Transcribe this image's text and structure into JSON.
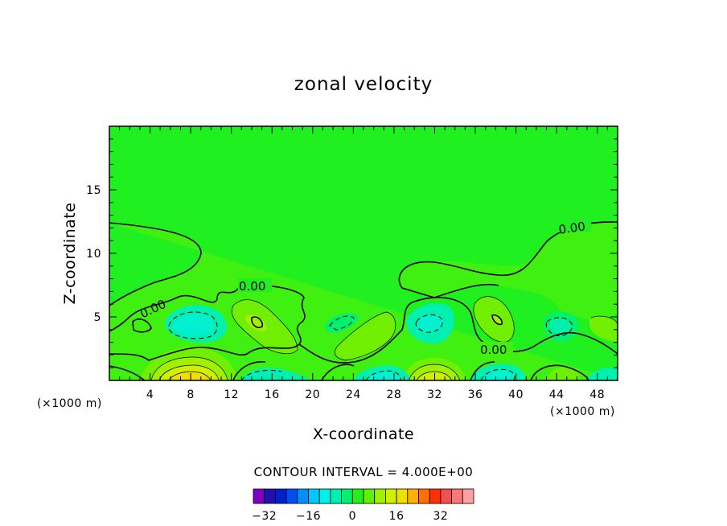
{
  "chart_data": {
    "type": "heatmap",
    "title": "zonal velocity",
    "xlabel": "X-coordinate",
    "ylabel": "Z-coordinate",
    "x_unit": "(×1000 m)",
    "xlim": [
      0,
      50
    ],
    "ylim": [
      0,
      20
    ],
    "x_ticks": [
      4,
      8,
      12,
      16,
      20,
      24,
      28,
      32,
      36,
      40,
      44,
      48
    ],
    "y_ticks": [
      5,
      10,
      15
    ],
    "contour_interval_text": "CONTOUR INTERVAL = 4.000E+00",
    "contour_labels": [
      "0.00",
      "0.00",
      "0.00",
      "0.00"
    ],
    "colorbar": {
      "levels": [
        -36,
        -32,
        -28,
        -24,
        -20,
        -16,
        -12,
        -8,
        -4,
        0,
        4,
        8,
        12,
        16,
        20,
        24,
        28,
        32,
        36,
        40
      ],
      "colors": [
        "#8000c0",
        "#2010b0",
        "#0020d0",
        "#0050f0",
        "#0090ff",
        "#00c8ff",
        "#00f0e8",
        "#00f0b0",
        "#00f070",
        "#20f020",
        "#60f000",
        "#a0f000",
        "#d0f000",
        "#f0e000",
        "#ffb000",
        "#ff7000",
        "#ff3000",
        "#f05050",
        "#f87878",
        "#ffa0a0"
      ],
      "tick_labels": [
        {
          "label": "−32",
          "value": -32
        },
        {
          "label": "−16",
          "value": -16
        },
        {
          "label": "0",
          "value": 0
        },
        {
          "label": "16",
          "value": 16
        },
        {
          "label": "32",
          "value": 32
        }
      ]
    },
    "grid": false,
    "field_description_regions": [
      {
        "x": 8,
        "z": 0.3,
        "value": 14
      },
      {
        "x": 31,
        "z": 0.3,
        "value": 10
      },
      {
        "x": 6,
        "z": 4.5,
        "value": -6
      },
      {
        "x": 14.5,
        "z": 4.6,
        "value": 6
      },
      {
        "x": 26,
        "z": 0.5,
        "value": -6
      },
      {
        "x": 32.5,
        "z": 4.7,
        "value": -6
      },
      {
        "x": 38.5,
        "z": 4.6,
        "value": 6
      },
      {
        "x": 45,
        "z": 3.8,
        "value": -3
      },
      {
        "x": 42,
        "z": 0.6,
        "value": -6
      },
      {
        "x": 49,
        "z": 0.5,
        "value": -5
      },
      {
        "x": 2,
        "z": 10.5,
        "value": 2
      },
      {
        "x": 34,
        "z": 9.5,
        "value": 2
      }
    ]
  }
}
